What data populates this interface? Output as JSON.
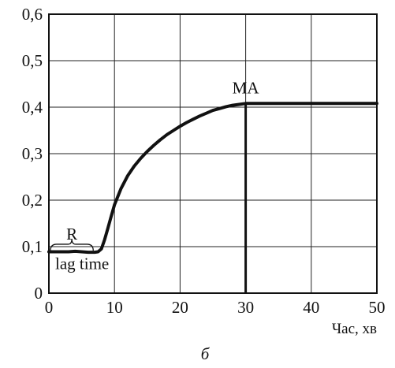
{
  "chart_data": {
    "type": "line",
    "title": "",
    "xlabel": "Час, хв",
    "ylabel": "",
    "caption": "б",
    "xlim": [
      0,
      50
    ],
    "ylim": [
      0,
      0.6
    ],
    "x_ticks": [
      0,
      10,
      20,
      30,
      40,
      50
    ],
    "y_ticks": [
      0,
      0.1,
      0.2,
      0.3,
      0.4,
      0.5,
      0.6
    ],
    "y_tick_labels": [
      "0",
      "0,1",
      "0,2",
      "0,3",
      "0,4",
      "0,5",
      "0,6"
    ],
    "grid": true,
    "series": [
      {
        "color": "#111111",
        "x": [
          0,
          2,
          3,
          4,
          5,
          6,
          7,
          7.5,
          8,
          8.5,
          9,
          9.5,
          10,
          11,
          12,
          13,
          14,
          15,
          16,
          17,
          18,
          19,
          20,
          21,
          22,
          23,
          24,
          25,
          26,
          27,
          28,
          29,
          30,
          35,
          40,
          45,
          50
        ],
        "y": [
          0.089,
          0.089,
          0.089,
          0.09,
          0.089,
          0.088,
          0.088,
          0.089,
          0.095,
          0.115,
          0.14,
          0.165,
          0.19,
          0.225,
          0.252,
          0.273,
          0.29,
          0.305,
          0.318,
          0.33,
          0.341,
          0.35,
          0.359,
          0.367,
          0.374,
          0.381,
          0.387,
          0.393,
          0.397,
          0.401,
          0.404,
          0.406,
          0.408,
          0.408,
          0.408,
          0.408,
          0.408
        ]
      }
    ],
    "annotations": [
      {
        "text": "R",
        "x": 3.5,
        "y": 0.115
      },
      {
        "text": "lag time",
        "x": 7,
        "y": 0.052
      },
      {
        "text": "MA",
        "x": 30,
        "y": 0.43
      }
    ],
    "markers": {
      "bracket": {
        "x0": 0,
        "x1": 7,
        "y": 0.095
      },
      "vertical_line": {
        "x": 30,
        "y0": 0,
        "y1": 0.408
      }
    }
  }
}
